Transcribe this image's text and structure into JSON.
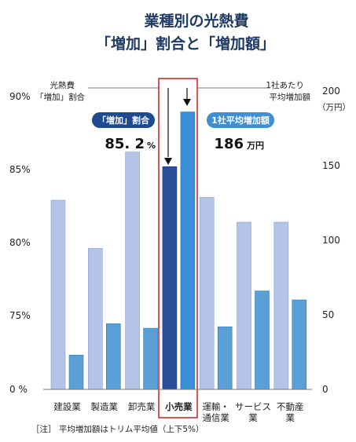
{
  "chart_data": {
    "type": "bar",
    "title_line1": "業種別の光熱費",
    "title_line2": "「増加」割合と「増加額」",
    "categories": [
      {
        "lines": [
          "建設業"
        ]
      },
      {
        "lines": [
          "製造業"
        ]
      },
      {
        "lines": [
          "卸売業"
        ]
      },
      {
        "lines": [
          "小売業"
        ]
      },
      {
        "lines": [
          "運輸・",
          "通信業"
        ]
      },
      {
        "lines": [
          "サービス",
          "業"
        ]
      },
      {
        "lines": [
          "不動産",
          "業"
        ]
      }
    ],
    "highlight_index": 3,
    "series": [
      {
        "name": "「増加」割合",
        "axis": "left",
        "values": [
          82.9,
          79.6,
          86.2,
          85.2,
          83.1,
          81.4,
          81.4
        ],
        "color": "#b4c4e8",
        "highlight_color": "#2b4f98"
      },
      {
        "name": "1社平均増加額",
        "axis": "right",
        "values": [
          23,
          44,
          41,
          186,
          42,
          66,
          60
        ],
        "color": "#5a9fd6",
        "highlight_color": "#3a8fd8"
      }
    ],
    "left_axis": {
      "ticks": [
        {
          "label": "0 %",
          "value": 0
        },
        {
          "label": "75%",
          "value": 75
        },
        {
          "label": "80%",
          "value": 80
        },
        {
          "label": "85%",
          "value": 85
        },
        {
          "label": "90%",
          "value": 90
        }
      ],
      "label_line1": "光熱費",
      "label_line2": "「増加」割合"
    },
    "right_axis": {
      "ylim": [
        0,
        200
      ],
      "ticks": [
        {
          "label": "0",
          "value": 0
        },
        {
          "label": "50",
          "value": 50
        },
        {
          "label": "100",
          "value": 100
        },
        {
          "label": "150",
          "value": 150
        },
        {
          "label": "200",
          "value": 200
        }
      ],
      "label_line1": "1社あたり",
      "label_line2": "平均増加額",
      "unit": "（万円）"
    },
    "callouts": {
      "left_pill": "「増加」割合",
      "left_value": "85. 2",
      "left_unit": "%",
      "right_pill": "1社平均増加額",
      "right_value": "186",
      "right_unit": "万円"
    },
    "note": "［注］ 平均増加額はトリム平均値（上下5%）",
    "colors": {
      "highlight_border": "#d42a2a",
      "title": "#1f3a63"
    }
  }
}
